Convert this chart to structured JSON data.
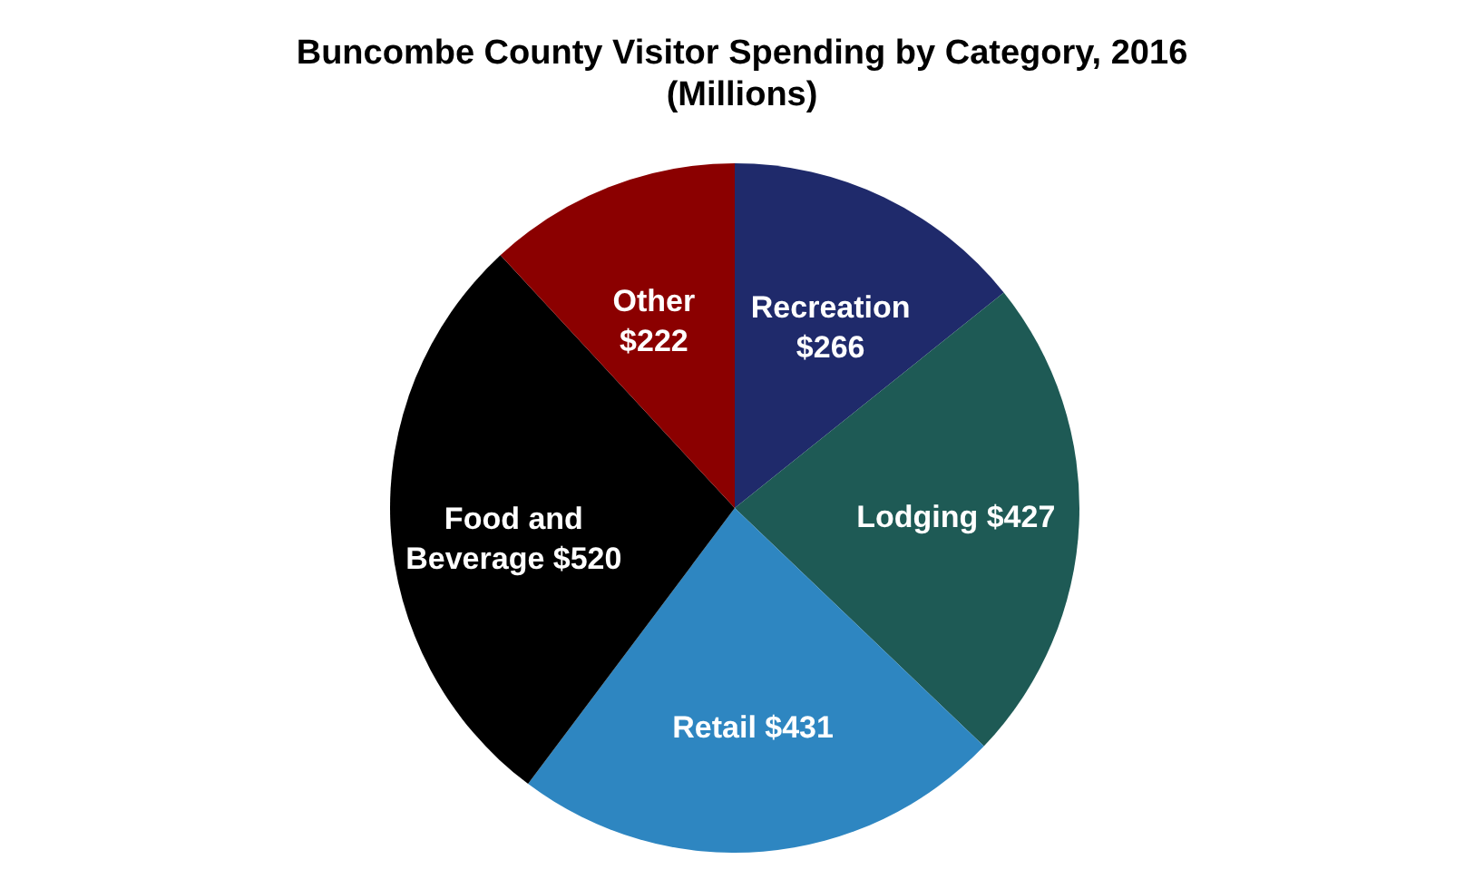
{
  "chart_data": {
    "type": "pie",
    "title": "Buncombe County Visitor Spending by Category, 2016",
    "subtitle": "(Millions)",
    "categories": [
      "Recreation",
      "Lodging",
      "Retail",
      "Food and Beverage",
      "Other"
    ],
    "values": [
      266,
      427,
      431,
      520,
      222
    ],
    "value_labels": [
      "$266",
      "$427",
      "$431",
      "$520",
      "$222"
    ],
    "colors": [
      "#1f2a6b",
      "#1e5a55",
      "#2e86c1",
      "#000000",
      "#8b0000"
    ]
  }
}
